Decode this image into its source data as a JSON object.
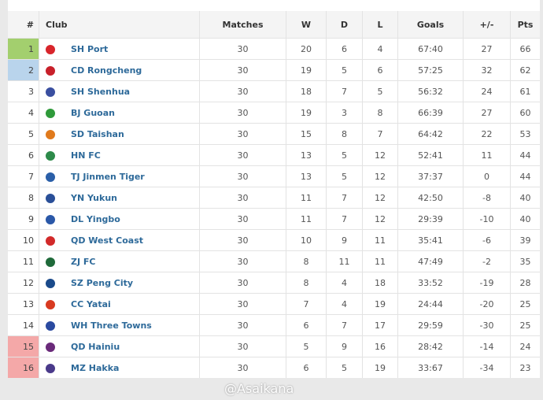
{
  "headers": {
    "pos": "#",
    "club": "Club",
    "matches": "Matches",
    "w": "W",
    "d": "D",
    "l": "L",
    "goals": "Goals",
    "gd": "+/-",
    "pts": "Pts"
  },
  "colors": {
    "champion": "#a3cf6e",
    "acl": "#b9d4ec",
    "relegation": "#f4a8a8"
  },
  "rows": [
    {
      "pos": "1",
      "club": "SH Port",
      "m": "30",
      "w": "20",
      "d": "6",
      "l": "4",
      "g": "67:40",
      "gd": "27",
      "pts": "66",
      "zone": "champion",
      "crest": "#d8252b"
    },
    {
      "pos": "2",
      "club": "CD Rongcheng",
      "m": "30",
      "w": "19",
      "d": "5",
      "l": "6",
      "g": "57:25",
      "gd": "32",
      "pts": "62",
      "zone": "acl",
      "crest": "#c8202a"
    },
    {
      "pos": "3",
      "club": "SH Shenhua",
      "m": "30",
      "w": "18",
      "d": "7",
      "l": "5",
      "g": "56:32",
      "gd": "24",
      "pts": "61",
      "crest": "#3a4fa0"
    },
    {
      "pos": "4",
      "club": "BJ Guoan",
      "m": "30",
      "w": "19",
      "d": "3",
      "l": "8",
      "g": "66:39",
      "gd": "27",
      "pts": "60",
      "crest": "#2f9a3a"
    },
    {
      "pos": "5",
      "club": "SD Taishan",
      "m": "30",
      "w": "15",
      "d": "8",
      "l": "7",
      "g": "64:42",
      "gd": "22",
      "pts": "53",
      "crest": "#e07a1c"
    },
    {
      "pos": "6",
      "club": "HN FC",
      "m": "30",
      "w": "13",
      "d": "5",
      "l": "12",
      "g": "52:41",
      "gd": "11",
      "pts": "44",
      "crest": "#2d8a4a"
    },
    {
      "pos": "7",
      "club": "TJ Jinmen Tiger",
      "m": "30",
      "w": "13",
      "d": "5",
      "l": "12",
      "g": "37:37",
      "gd": "0",
      "pts": "44",
      "crest": "#2a5fa8"
    },
    {
      "pos": "8",
      "club": "YN Yukun",
      "m": "30",
      "w": "11",
      "d": "7",
      "l": "12",
      "g": "42:50",
      "gd": "-8",
      "pts": "40",
      "crest": "#2a4f98"
    },
    {
      "pos": "9",
      "club": "DL Yingbo",
      "m": "30",
      "w": "11",
      "d": "7",
      "l": "12",
      "g": "29:39",
      "gd": "-10",
      "pts": "40",
      "crest": "#2a58a8"
    },
    {
      "pos": "10",
      "club": "QD West Coast",
      "m": "30",
      "w": "10",
      "d": "9",
      "l": "11",
      "g": "35:41",
      "gd": "-6",
      "pts": "39",
      "crest": "#d22a2a"
    },
    {
      "pos": "11",
      "club": "ZJ FC",
      "m": "30",
      "w": "8",
      "d": "11",
      "l": "11",
      "g": "47:49",
      "gd": "-2",
      "pts": "35",
      "crest": "#1f6a3a"
    },
    {
      "pos": "12",
      "club": "SZ Peng City",
      "m": "30",
      "w": "8",
      "d": "4",
      "l": "18",
      "g": "33:52",
      "gd": "-19",
      "pts": "28",
      "crest": "#1a4a8a"
    },
    {
      "pos": "13",
      "club": "CC Yatai",
      "m": "30",
      "w": "7",
      "d": "4",
      "l": "19",
      "g": "24:44",
      "gd": "-20",
      "pts": "25",
      "crest": "#d83a20"
    },
    {
      "pos": "14",
      "club": "WH Three Towns",
      "m": "30",
      "w": "6",
      "d": "7",
      "l": "17",
      "g": "29:59",
      "gd": "-30",
      "pts": "25",
      "crest": "#2a4aa0"
    },
    {
      "pos": "15",
      "club": "QD Hainiu",
      "m": "30",
      "w": "5",
      "d": "9",
      "l": "16",
      "g": "28:42",
      "gd": "-14",
      "pts": "24",
      "zone": "relegation",
      "crest": "#6a2a7a"
    },
    {
      "pos": "16",
      "club": "MZ Hakka",
      "m": "30",
      "w": "6",
      "d": "5",
      "l": "19",
      "g": "33:67",
      "gd": "-34",
      "pts": "23",
      "zone": "relegation",
      "crest": "#4a3a8a"
    }
  ],
  "watermark": "@Asaikana"
}
